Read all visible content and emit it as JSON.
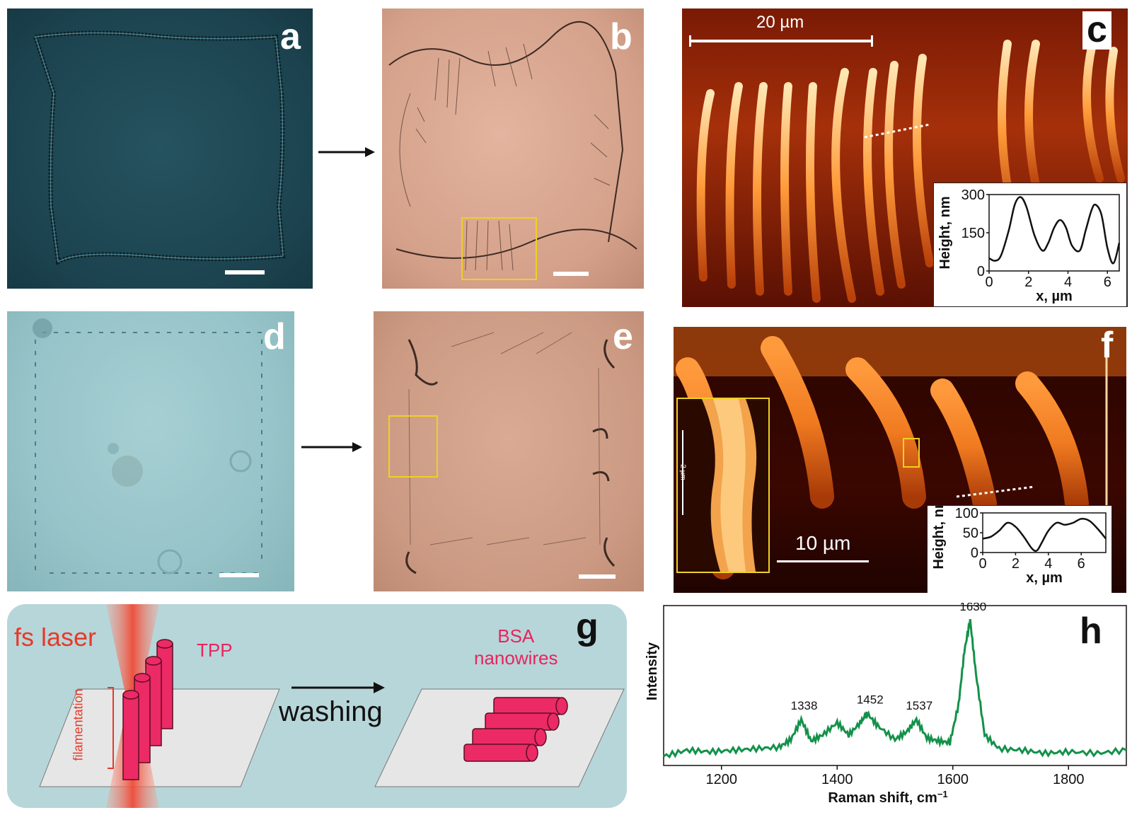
{
  "panels": {
    "a": {
      "label": "a"
    },
    "b": {
      "label": "b"
    },
    "c": {
      "label": "c",
      "scale_text": "20 µm",
      "inset": {
        "ylabel": "Height, nm",
        "xlabel": "x, µm",
        "yticks": [
          "0",
          "150",
          "300"
        ],
        "xticks": [
          "0",
          "2",
          "4",
          "6"
        ]
      }
    },
    "d": {
      "label": "d"
    },
    "e": {
      "label": "e"
    },
    "f": {
      "label": "f",
      "scale_text": "10 µm",
      "zoom_scale_text": "2 µm",
      "inset": {
        "ylabel": "Height, nm",
        "xlabel": "x, µm",
        "yticks": [
          "0",
          "50",
          "100"
        ],
        "xticks": [
          "0",
          "2",
          "4",
          "6"
        ]
      }
    },
    "g": {
      "label": "g",
      "laser": "fs laser",
      "tpp": "TPP",
      "filament": "filamentation",
      "washing": "washing",
      "bsa_line1": "BSA",
      "bsa_line2": "nanowires"
    },
    "h": {
      "label": "h"
    }
  },
  "colors": {
    "afm_dark": "#3a0700",
    "afm_mid": "#c2400a",
    "afm_bright": "#ffe2a0",
    "raman_line": "#13914a",
    "accent_pink": "#e8245f",
    "laser_red": "#e53a2a",
    "schematic_bg": "#b7d6d9",
    "yellow_box": "#f0d020"
  },
  "chart_data": [
    {
      "type": "line",
      "panel": "c-inset",
      "xlabel": "x, µm",
      "ylabel": "Height, nm",
      "xlim": [
        0,
        6.6
      ],
      "ylim": [
        0,
        300
      ],
      "x": [
        0,
        0.3,
        0.6,
        1.0,
        1.3,
        1.6,
        1.9,
        2.3,
        2.7,
        3.0,
        3.3,
        3.6,
        3.9,
        4.2,
        4.6,
        4.9,
        5.2,
        5.4,
        5.7,
        6.0,
        6.3,
        6.6
      ],
      "y": [
        50,
        40,
        60,
        160,
        260,
        290,
        250,
        140,
        80,
        110,
        170,
        200,
        170,
        100,
        80,
        160,
        240,
        260,
        220,
        90,
        30,
        110
      ]
    },
    {
      "type": "line",
      "panel": "f-inset",
      "xlabel": "x, µm",
      "ylabel": "Height, nm",
      "xlim": [
        0,
        7.5
      ],
      "ylim": [
        0,
        100
      ],
      "x": [
        0,
        0.5,
        1.0,
        1.5,
        2.0,
        2.5,
        3.0,
        3.3,
        3.6,
        4.0,
        4.5,
        5.0,
        5.5,
        6.0,
        6.5,
        7.0,
        7.5
      ],
      "y": [
        35,
        40,
        55,
        75,
        65,
        40,
        10,
        5,
        25,
        55,
        75,
        70,
        75,
        85,
        80,
        60,
        35
      ]
    },
    {
      "type": "line",
      "panel": "h",
      "xlabel": "Raman shift, cm",
      "xlabel_sup": "−1",
      "ylabel": "Intensity",
      "xlim": [
        1100,
        1900
      ],
      "xticks": [
        1200,
        1400,
        1600,
        1800
      ],
      "peak_labels": [
        {
          "x": 1338,
          "label": "1338"
        },
        {
          "x": 1452,
          "label": "1452"
        },
        {
          "x": 1537,
          "label": "1537"
        },
        {
          "x": 1630,
          "label": "1630"
        }
      ],
      "x": [
        1100,
        1140,
        1180,
        1220,
        1260,
        1300,
        1320,
        1338,
        1355,
        1375,
        1400,
        1420,
        1440,
        1452,
        1470,
        1500,
        1520,
        1537,
        1555,
        1575,
        1595,
        1610,
        1620,
        1630,
        1640,
        1655,
        1680,
        1720,
        1760,
        1800,
        1850,
        1900
      ],
      "y": [
        0.06,
        0.1,
        0.09,
        0.1,
        0.11,
        0.12,
        0.17,
        0.3,
        0.16,
        0.2,
        0.28,
        0.2,
        0.28,
        0.34,
        0.26,
        0.17,
        0.22,
        0.3,
        0.18,
        0.16,
        0.15,
        0.4,
        0.75,
        0.95,
        0.6,
        0.2,
        0.11,
        0.1,
        0.08,
        0.09,
        0.08,
        0.1
      ]
    }
  ]
}
